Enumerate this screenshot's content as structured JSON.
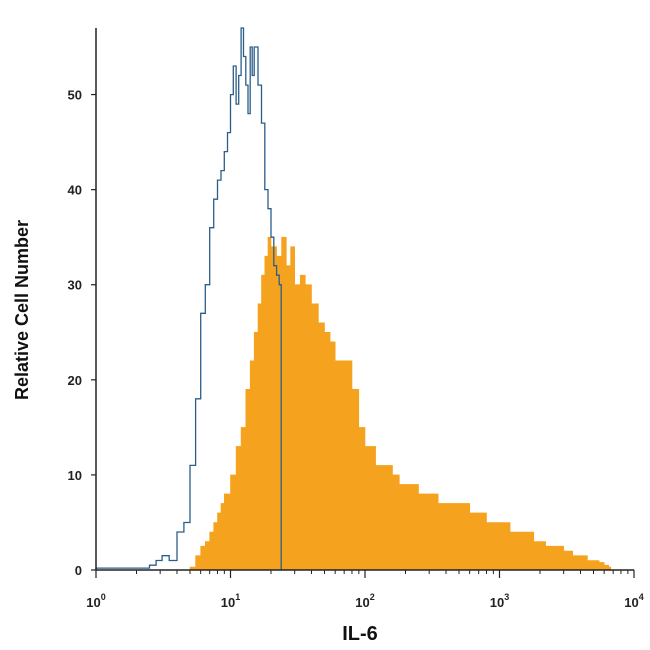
{
  "chart_data": {
    "type": "area",
    "xlabel": "IL-6",
    "ylabel": "Relative Cell Number",
    "x_scale": "log",
    "xlim": [
      1,
      10000
    ],
    "ylim": [
      0,
      57
    ],
    "x_ticks": [
      {
        "value": 1,
        "base": "10",
        "exp": "0"
      },
      {
        "value": 10,
        "base": "10",
        "exp": "1"
      },
      {
        "value": 100,
        "base": "10",
        "exp": "2"
      },
      {
        "value": 1000,
        "base": "10",
        "exp": "3"
      },
      {
        "value": 10000,
        "base": "10",
        "exp": "4"
      }
    ],
    "y_ticks": [
      0,
      10,
      20,
      30,
      40,
      50
    ],
    "colors": {
      "control": "#2b5f8a",
      "stained": "#f5a21e",
      "axis": "#222222"
    },
    "series": [
      {
        "style": "outline",
        "x": [
          1,
          2.5,
          2.8,
          3.1,
          3.5,
          4,
          4.5,
          5,
          5.5,
          6,
          6.5,
          7,
          7.5,
          8,
          8.5,
          9,
          9.5,
          10,
          10.5,
          11,
          11.5,
          12,
          12.5,
          13,
          13.5,
          14,
          14.5,
          15,
          16,
          17,
          18,
          19,
          20,
          21,
          22,
          23
        ],
        "y": [
          0.2,
          0.5,
          1,
          1.5,
          1,
          4,
          5,
          11,
          18,
          27,
          30,
          36,
          39,
          41,
          42,
          44,
          46,
          50,
          53,
          49,
          52,
          57,
          54,
          51,
          48,
          55,
          52,
          55,
          51,
          47,
          40,
          38,
          35,
          32,
          31,
          30
        ]
      },
      {
        "style": "filled",
        "x": [
          5,
          5.5,
          6,
          6.5,
          7,
          7.5,
          8,
          8.5,
          9,
          10,
          11,
          12,
          13,
          14,
          15,
          16,
          17,
          18,
          19,
          20,
          22,
          24,
          26,
          28,
          30,
          33,
          36,
          40,
          45,
          50,
          55,
          60,
          70,
          80,
          90,
          100,
          120,
          140,
          160,
          180,
          200,
          250,
          300,
          350,
          400,
          500,
          600,
          700,
          800,
          900,
          1000,
          1200,
          1500,
          1800,
          2200,
          2600,
          3000,
          3500,
          4000,
          4500,
          5000,
          5500,
          6000,
          6500
        ],
        "y": [
          0.3,
          1.5,
          2.5,
          3,
          4,
          5,
          6,
          7,
          8,
          10,
          13,
          15,
          19,
          22,
          25,
          28,
          31,
          33,
          35,
          34,
          33,
          35,
          32,
          34,
          30,
          31,
          30,
          28,
          26,
          25,
          24,
          22,
          22,
          19,
          15,
          13,
          11,
          11,
          10,
          9,
          9,
          8,
          8,
          7,
          7,
          7,
          6,
          6,
          5,
          5,
          5,
          4,
          4,
          3,
          2.5,
          2.5,
          2,
          1.5,
          1.5,
          1,
          1,
          0.8,
          0.5,
          0.3
        ]
      }
    ]
  }
}
